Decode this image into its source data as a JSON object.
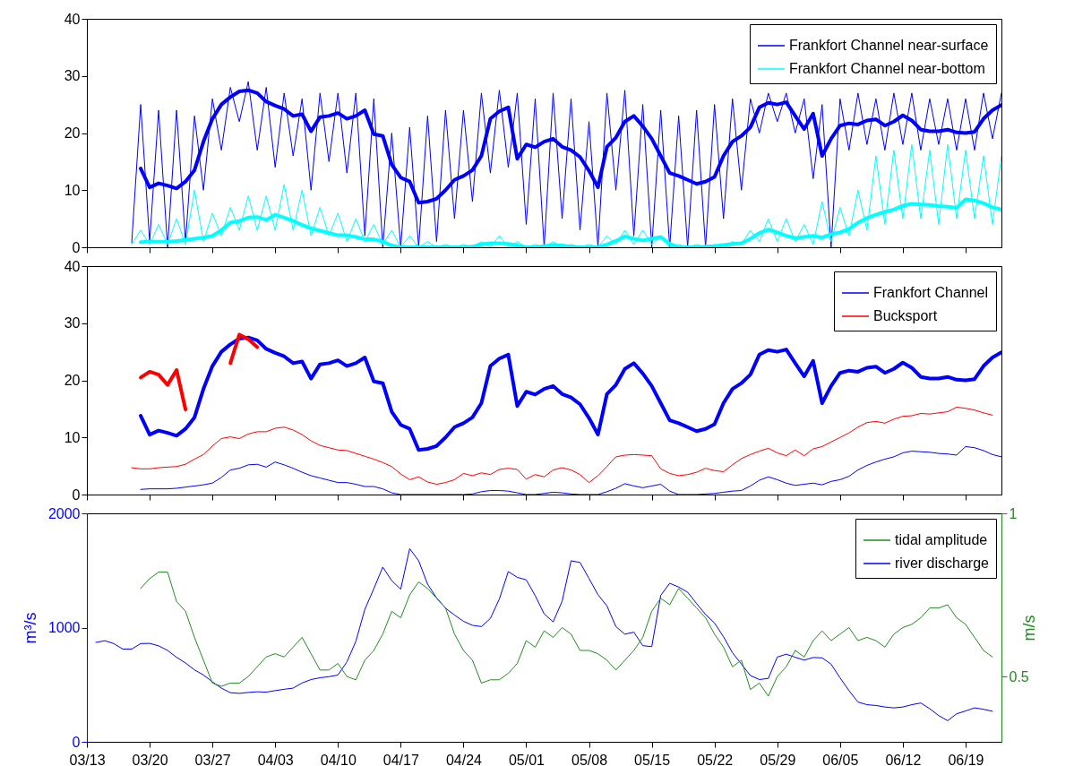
{
  "chart_data": [
    {
      "type": "line",
      "ylim": [
        0,
        40
      ],
      "yticks": [
        0,
        10,
        20,
        30,
        40
      ],
      "xlim": [
        "--03-13",
        "--06-23"
      ],
      "xticks": [
        {
          "value": "--03-13",
          "label": "03/13"
        },
        {
          "value": "--03-20",
          "label": "03/20"
        },
        {
          "value": "--03-27",
          "label": "03/27"
        },
        {
          "value": "--04-03",
          "label": "04/03"
        },
        {
          "value": "--04-10",
          "label": "04/10"
        },
        {
          "value": "--04-17",
          "label": "04/17"
        },
        {
          "value": "--04-24",
          "label": "04/24"
        },
        {
          "value": "--05-01",
          "label": "05/01"
        },
        {
          "value": "--05-08",
          "label": "05/08"
        },
        {
          "value": "--05-15",
          "label": "05/15"
        },
        {
          "value": "--05-22",
          "label": "05/22"
        },
        {
          "value": "--05-29",
          "label": "05/29"
        },
        {
          "value": "--06-05",
          "label": "06/05"
        },
        {
          "value": "--06-12",
          "label": "06/12"
        },
        {
          "value": "--06-19",
          "label": "06/19"
        }
      ],
      "tick_labels": "y",
      "legend": "top right",
      "x": [
        "--03-18",
        "--03-19",
        "--03-20",
        "--03-21",
        "--03-22",
        "--03-23",
        "--03-24",
        "--03-25",
        "--03-26",
        "--03-27",
        "--03-28",
        "--03-29",
        "--03-30",
        "--03-31",
        "--04-01",
        "--04-02",
        "--04-03",
        "--04-04",
        "--04-05",
        "--04-06",
        "--04-07",
        "--04-08",
        "--04-09",
        "--04-10",
        "--04-11",
        "--04-12",
        "--04-13",
        "--04-14",
        "--04-15",
        "--04-16",
        "--04-17",
        "--04-18",
        "--04-19",
        "--04-20",
        "--04-21",
        "--04-22",
        "--04-23",
        "--04-24",
        "--04-25",
        "--04-26",
        "--04-27",
        "--04-28",
        "--04-29",
        "--04-30",
        "--05-01",
        "--05-02",
        "--05-03",
        "--05-04",
        "--05-05",
        "--05-06",
        "--05-07",
        "--05-08",
        "--05-09",
        "--05-10",
        "--05-11",
        "--05-12",
        "--05-13",
        "--05-14",
        "--05-15",
        "--05-16",
        "--05-17",
        "--05-18",
        "--05-19",
        "--05-20",
        "--05-21",
        "--05-22",
        "--05-23",
        "--05-24",
        "--05-25",
        "--05-26",
        "--05-27",
        "--05-28",
        "--05-29",
        "--05-30",
        "--05-31",
        "--06-01",
        "--06-02",
        "--06-03",
        "--06-04",
        "--06-05",
        "--06-06",
        "--06-07",
        "--06-08",
        "--06-09",
        "--06-10",
        "--06-11",
        "--06-12",
        "--06-13",
        "--06-14",
        "--06-15",
        "--06-16",
        "--06-17",
        "--06-18",
        "--06-19",
        "--06-20",
        "--06-21",
        "--06-22",
        "--06-23"
      ],
      "series": [
        {
          "name": "Frankfort Channel near-surface",
          "color": "#0000ff",
          "values": [
            0.8,
            25,
            1,
            24,
            0,
            24,
            1,
            23,
            10,
            26,
            17,
            28,
            22,
            29,
            17,
            28,
            14,
            27,
            16,
            26,
            10,
            27,
            15,
            27,
            13,
            27,
            2,
            26,
            0,
            20,
            0,
            21,
            0,
            23,
            1,
            24,
            5,
            24,
            8,
            27,
            13,
            27.5,
            14,
            27,
            4,
            26,
            0,
            27,
            5,
            26,
            3,
            22,
            0,
            27,
            10,
            27.5,
            2,
            25,
            0,
            24,
            0,
            23,
            0,
            24,
            0,
            25,
            5,
            26,
            10,
            26,
            20,
            27,
            22,
            27,
            20,
            26,
            12,
            25,
            0,
            26,
            17,
            27,
            18,
            26,
            17,
            27,
            18,
            27,
            17,
            26,
            18,
            26,
            17,
            26,
            17,
            27,
            19,
            27
          ]
        },
        {
          "name": "Frankfort Channel near-bottom",
          "color": "#00ffff",
          "values": [
            0.5,
            3,
            0.5,
            4,
            0.5,
            5,
            0.5,
            10,
            1,
            6,
            2,
            7,
            3,
            9,
            3,
            9,
            3,
            11,
            3,
            10,
            2,
            7,
            2,
            6,
            1,
            5,
            1,
            4,
            0.5,
            3,
            0,
            2,
            0,
            1,
            0,
            0.5,
            0,
            0.5,
            0,
            1,
            0,
            2,
            0,
            1,
            0,
            0.5,
            0,
            1,
            0,
            0.5,
            0,
            0.5,
            0,
            2,
            0.5,
            3,
            0.5,
            3,
            0.5,
            2,
            0,
            0.5,
            0,
            0.5,
            0,
            0.5,
            0,
            1,
            0.5,
            3,
            1,
            5,
            1,
            5,
            1,
            4,
            0.5,
            8,
            1,
            7,
            2,
            10,
            3,
            16,
            4,
            17,
            5,
            18,
            5,
            17,
            4,
            18,
            5,
            17,
            5,
            16,
            4,
            16
          ]
        },
        {
          "color": "#0000ff",
          "values": [
            null,
            13.8,
            10.5,
            11.2,
            10.8,
            10.3,
            11.5,
            13.5,
            18.5,
            22.5,
            25,
            26.3,
            27.3,
            27.5,
            27,
            25.5,
            24.8,
            24.2,
            23,
            23.3,
            20.3,
            22.8,
            23,
            23.5,
            22.5,
            23,
            24,
            19.8,
            19.5,
            14.5,
            12.2,
            11.5,
            7.8,
            8,
            8.5,
            10,
            11.8,
            12.5,
            13.5,
            16,
            22.5,
            23.8,
            24.5,
            15.5,
            18,
            17.5,
            18.5,
            19,
            17.6,
            17,
            15.8,
            13.4,
            10.5,
            17.6,
            19.2,
            22,
            23,
            21.2,
            19,
            16,
            13,
            12.5,
            11.8,
            11.1,
            11.5,
            12.3,
            16,
            18.5,
            19.5,
            21,
            24.5,
            25.3,
            25,
            25.4,
            23,
            20.7,
            23.4,
            16,
            19,
            21.3,
            21.7,
            21.5,
            22.2,
            22.4,
            21.3,
            22,
            23.1,
            22.2,
            20.6,
            20.3,
            20.3,
            20.6,
            20.1,
            20,
            20.2,
            22.5,
            24,
            24.9
          ]
        },
        {
          "color": "#00ffff",
          "values": [
            null,
            0.9,
            1,
            1,
            1,
            1.1,
            1.3,
            1.5,
            1.7,
            2,
            3,
            4.3,
            4.6,
            5.2,
            5.3,
            4.8,
            5.7,
            5.2,
            4.6,
            3.9,
            3.3,
            2.9,
            2.5,
            2.1,
            2.1,
            1.8,
            1.4,
            1.4,
            1,
            0.3,
            0,
            0,
            0,
            0,
            0,
            0,
            0,
            0,
            0.1,
            0.5,
            0.7,
            0.7,
            0.6,
            0.3,
            0,
            0,
            0.2,
            0.4,
            0.3,
            0.1,
            0,
            0,
            0,
            0.5,
            1.1,
            1.9,
            1.5,
            1.2,
            1.5,
            1.8,
            0.6,
            0,
            0,
            0,
            0.1,
            0.2,
            0.4,
            0.6,
            0.7,
            1.5,
            2.5,
            3.1,
            2.6,
            2,
            1.6,
            1.8,
            2,
            1.7,
            2.3,
            2.6,
            3.2,
            4.3,
            5.1,
            5.7,
            6.2,
            6.6,
            7.3,
            7.6,
            7.5,
            7.4,
            7.2,
            7.1,
            6.9,
            8.4,
            8.2,
            7.7,
            7,
            6.6
          ]
        }
      ]
    },
    {
      "type": "line",
      "ylim": [
        0,
        40
      ],
      "yticks": [
        0,
        10,
        20,
        30,
        40
      ],
      "xlim": [
        "--03-13",
        "--06-23"
      ],
      "xticks": [
        {
          "value": "--03-13",
          "label": "03/13"
        },
        {
          "value": "--03-20",
          "label": "03/20"
        },
        {
          "value": "--03-27",
          "label": "03/27"
        },
        {
          "value": "--04-03",
          "label": "04/03"
        },
        {
          "value": "--04-10",
          "label": "04/10"
        },
        {
          "value": "--04-17",
          "label": "04/17"
        },
        {
          "value": "--04-24",
          "label": "04/24"
        },
        {
          "value": "--05-01",
          "label": "05/01"
        },
        {
          "value": "--05-08",
          "label": "05/08"
        },
        {
          "value": "--05-15",
          "label": "05/15"
        },
        {
          "value": "--05-22",
          "label": "05/22"
        },
        {
          "value": "--05-29",
          "label": "05/29"
        },
        {
          "value": "--06-05",
          "label": "06/05"
        },
        {
          "value": "--06-12",
          "label": "06/12"
        },
        {
          "value": "--06-19",
          "label": "06/19"
        }
      ],
      "tick_labels": "y",
      "legend": "top right",
      "x": [
        "--03-18",
        "--03-19",
        "--03-20",
        "--03-21",
        "--03-22",
        "--03-23",
        "--03-24",
        "--03-25",
        "--03-26",
        "--03-27",
        "--03-28",
        "--03-29",
        "--03-30",
        "--03-31",
        "--04-01",
        "--04-02",
        "--04-03",
        "--04-04",
        "--04-05",
        "--04-06",
        "--04-07",
        "--04-08",
        "--04-09",
        "--04-10",
        "--04-11",
        "--04-12",
        "--04-13",
        "--04-14",
        "--04-15",
        "--04-16",
        "--04-17",
        "--04-18",
        "--04-19",
        "--04-20",
        "--04-21",
        "--04-22",
        "--04-23",
        "--04-24",
        "--04-25",
        "--04-26",
        "--04-27",
        "--04-28",
        "--04-29",
        "--04-30",
        "--05-01",
        "--05-02",
        "--05-03",
        "--05-04",
        "--05-05",
        "--05-06",
        "--05-07",
        "--05-08",
        "--05-09",
        "--05-10",
        "--05-11",
        "--05-12",
        "--05-13",
        "--05-14",
        "--05-15",
        "--05-16",
        "--05-17",
        "--05-18",
        "--05-19",
        "--05-20",
        "--05-21",
        "--05-22",
        "--05-23",
        "--05-24",
        "--05-25",
        "--05-26",
        "--05-27",
        "--05-28",
        "--05-29",
        "--05-30",
        "--05-31",
        "--06-01",
        "--06-02",
        "--06-03",
        "--06-04",
        "--06-05",
        "--06-06",
        "--06-07",
        "--06-08",
        "--06-09",
        "--06-10",
        "--06-11",
        "--06-12",
        "--06-13",
        "--06-14",
        "--06-15",
        "--06-16",
        "--06-17",
        "--06-18",
        "--06-19",
        "--06-20",
        "--06-21",
        "--06-22",
        "--06-23"
      ],
      "series": [
        {
          "name": "Frankfort Channel",
          "color": "#0000ff",
          "values": [
            null,
            0.9,
            1,
            1,
            1,
            1.1,
            1.3,
            1.5,
            1.7,
            2,
            3,
            4.3,
            4.6,
            5.2,
            5.3,
            4.8,
            5.7,
            5.2,
            4.6,
            3.9,
            3.3,
            2.9,
            2.5,
            2.1,
            2.1,
            1.8,
            1.4,
            1.4,
            1,
            0.3,
            0,
            0,
            0,
            0,
            0,
            0,
            0,
            0,
            0.1,
            0.5,
            0.7,
            0.7,
            0.6,
            0.3,
            0,
            0,
            0.2,
            0.4,
            0.3,
            0.1,
            0,
            0,
            0,
            0.5,
            1.1,
            1.9,
            1.5,
            1.2,
            1.5,
            1.8,
            0.6,
            0,
            0,
            0,
            0.1,
            0.2,
            0.4,
            0.6,
            0.7,
            1.5,
            2.5,
            3.1,
            2.6,
            2,
            1.6,
            1.8,
            2,
            1.7,
            2.3,
            2.6,
            3.2,
            4.3,
            5.1,
            5.7,
            6.2,
            6.6,
            7.3,
            7.6,
            7.5,
            7.4,
            7.2,
            7.1,
            6.9,
            8.4,
            8.2,
            7.7,
            7,
            6.6
          ]
        },
        {
          "name": "Bucksport",
          "color": "#ff0000",
          "values": [
            4.7,
            4.5,
            4.5,
            4.7,
            4.8,
            4.9,
            5.3,
            6.2,
            7,
            8.5,
            9.8,
            10.1,
            9.8,
            10.6,
            11,
            11,
            11.6,
            11.8,
            11.3,
            10.5,
            9.4,
            8.6,
            8.2,
            7.8,
            7.7,
            7.2,
            6.7,
            6.2,
            5.6,
            4.9,
            3.6,
            2.6,
            3.1,
            2.2,
            1.8,
            2.1,
            2.6,
            3.7,
            3.3,
            3.8,
            3.5,
            4.4,
            4.6,
            4.4,
            2.7,
            3.5,
            3.1,
            4.3,
            4.7,
            4.3,
            3.5,
            2.1,
            3.3,
            4.9,
            6.6,
            6.9,
            7,
            6.9,
            6.8,
            4.5,
            3.7,
            3.3,
            3.5,
            3.9,
            4.6,
            4.2,
            4,
            5.2,
            6.3,
            7,
            7.6,
            8.1,
            7.3,
            6.8,
            7.8,
            6.8,
            8,
            8.4,
            9.2,
            10,
            10.8,
            11.8,
            12.6,
            12.8,
            12.5,
            13.2,
            13.7,
            13.8,
            14.2,
            14.1,
            14.3,
            14.5,
            15.3,
            15.1,
            14.8,
            14.3,
            13.9,
            null
          ]
        },
        {
          "color": "#0000ff",
          "values": [
            null,
            13.8,
            10.5,
            11.2,
            10.8,
            10.3,
            11.5,
            13.5,
            18.5,
            22.5,
            25,
            26.3,
            27.3,
            27.5,
            27,
            25.5,
            24.8,
            24.2,
            23,
            23.3,
            20.3,
            22.8,
            23,
            23.5,
            22.5,
            23,
            24,
            19.8,
            19.5,
            14.5,
            12.2,
            11.5,
            7.8,
            8,
            8.5,
            10,
            11.8,
            12.5,
            13.5,
            16,
            22.5,
            23.8,
            24.5,
            15.5,
            18,
            17.5,
            18.5,
            19,
            17.6,
            17,
            15.8,
            13.4,
            10.5,
            17.6,
            19.2,
            22,
            23,
            21.2,
            19,
            16,
            13,
            12.5,
            11.8,
            11.1,
            11.5,
            12.3,
            16,
            18.5,
            19.5,
            21,
            24.5,
            25.3,
            25,
            25.4,
            23,
            20.7,
            23.4,
            16,
            19,
            21.3,
            21.7,
            21.5,
            22.2,
            22.4,
            21.3,
            22,
            23.1,
            22.2,
            20.6,
            20.3,
            20.3,
            20.6,
            20.1,
            20,
            20.2,
            22.5,
            24,
            24.9
          ]
        },
        {
          "color": "#ff0000",
          "x": [
            "--03-19",
            "--03-20",
            "--03-21",
            "--03-22",
            "--03-23",
            "--03-24"
          ],
          "values": [
            20.5,
            21.5,
            21,
            19.2,
            21.8,
            14.9
          ]
        },
        {
          "color": "#ff0000",
          "x": [
            "--03-29",
            "--03-30",
            "--03-31",
            "--04-01"
          ],
          "values": [
            23,
            28,
            27.2,
            25.8
          ]
        }
      ]
    },
    {
      "type": "line",
      "ylim": [
        0,
        2000
      ],
      "yticks": [
        0,
        1000,
        2000
      ],
      "y2lim": [
        0.3,
        1
      ],
      "y2ticks": [
        0.5,
        1
      ],
      "ylabel": "m³/s",
      "y2label": "m/s",
      "xlim": [
        "--03-13",
        "--06-23"
      ],
      "xticks": [
        {
          "value": "--03-13",
          "label": "03/13"
        },
        {
          "value": "--03-20",
          "label": "03/20"
        },
        {
          "value": "--03-27",
          "label": "03/27"
        },
        {
          "value": "--04-03",
          "label": "04/03"
        },
        {
          "value": "--04-10",
          "label": "04/10"
        },
        {
          "value": "--04-17",
          "label": "04/17"
        },
        {
          "value": "--04-24",
          "label": "04/24"
        },
        {
          "value": "--05-01",
          "label": "05/01"
        },
        {
          "value": "--05-08",
          "label": "05/08"
        },
        {
          "value": "--05-15",
          "label": "05/15"
        },
        {
          "value": "--05-22",
          "label": "05/22"
        },
        {
          "value": "--05-29",
          "label": "05/29"
        },
        {
          "value": "--06-05",
          "label": "06/05"
        },
        {
          "value": "--06-12",
          "label": "06/12"
        },
        {
          "value": "--06-19",
          "label": "06/19"
        }
      ],
      "legend": "top right",
      "x": [
        "--03-14",
        "--03-15",
        "--03-16",
        "--03-17",
        "--03-18",
        "--03-19",
        "--03-20",
        "--03-21",
        "--03-22",
        "--03-23",
        "--03-24",
        "--03-25",
        "--03-26",
        "--03-27",
        "--03-28",
        "--03-29",
        "--03-30",
        "--03-31",
        "--04-01",
        "--04-02",
        "--04-03",
        "--04-04",
        "--04-05",
        "--04-06",
        "--04-07",
        "--04-08",
        "--04-09",
        "--04-10",
        "--04-11",
        "--04-12",
        "--04-13",
        "--04-14",
        "--04-15",
        "--04-16",
        "--04-17",
        "--04-18",
        "--04-19",
        "--04-20",
        "--04-21",
        "--04-22",
        "--04-23",
        "--04-24",
        "--04-25",
        "--04-26",
        "--04-27",
        "--04-28",
        "--04-29",
        "--04-30",
        "--05-01",
        "--05-02",
        "--05-03",
        "--05-04",
        "--05-05",
        "--05-06",
        "--05-07",
        "--05-08",
        "--05-09",
        "--05-10",
        "--05-11",
        "--05-12",
        "--05-13",
        "--05-14",
        "--05-15",
        "--05-16",
        "--05-17",
        "--05-18",
        "--05-19",
        "--05-20",
        "--05-21",
        "--05-22",
        "--05-23",
        "--05-24",
        "--05-25",
        "--05-26",
        "--05-27",
        "--05-28",
        "--05-29",
        "--05-30",
        "--05-31",
        "--06-01",
        "--06-02",
        "--06-03",
        "--06-04",
        "--06-05",
        "--06-06",
        "--06-07",
        "--06-08",
        "--06-09",
        "--06-10",
        "--06-11",
        "--06-12",
        "--06-13",
        "--06-14",
        "--06-15",
        "--06-16",
        "--06-17",
        "--06-18",
        "--06-19",
        "--06-20",
        "--06-21",
        "--06-22"
      ],
      "series": [
        {
          "name": "tidal amplitude",
          "color": "#228b22",
          "axis": "y2",
          "values": [
            null,
            null,
            null,
            null,
            null,
            0.77,
            0.8,
            0.82,
            0.82,
            0.73,
            0.7,
            0.62,
            0.55,
            0.48,
            0.47,
            0.48,
            0.48,
            0.5,
            0.53,
            0.56,
            0.57,
            0.56,
            0.59,
            0.62,
            0.57,
            0.52,
            0.52,
            0.54,
            0.5,
            0.49,
            0.55,
            0.58,
            0.63,
            0.7,
            0.68,
            0.75,
            0.79,
            0.77,
            0.74,
            0.71,
            0.63,
            0.58,
            0.55,
            0.48,
            0.49,
            0.49,
            0.51,
            0.54,
            0.61,
            0.59,
            0.64,
            0.62,
            0.65,
            0.63,
            0.58,
            0.58,
            0.57,
            0.55,
            0.52,
            0.55,
            0.58,
            0.62,
            0.7,
            0.74,
            0.72,
            0.77,
            0.74,
            0.71,
            0.68,
            0.63,
            0.59,
            0.53,
            0.55,
            0.46,
            0.48,
            0.44,
            0.5,
            0.53,
            0.58,
            0.56,
            0.61,
            0.64,
            0.61,
            0.63,
            0.65,
            0.61,
            0.62,
            0.61,
            0.59,
            0.63,
            0.65,
            0.66,
            0.68,
            0.71,
            0.71,
            0.72,
            0.68,
            0.66,
            0.62,
            0.58,
            0.56
          ]
        },
        {
          "name": "river discharge",
          "color": "#0000ff",
          "values": [
            870,
            885,
            860,
            812,
            812,
            860,
            862,
            840,
            800,
            740,
            690,
            630,
            585,
            525,
            470,
            430,
            424,
            432,
            438,
            435,
            448,
            460,
            470,
            515,
            545,
            561,
            570,
            585,
            700,
            880,
            1160,
            1340,
            1530,
            1410,
            1336,
            1691,
            1585,
            1380,
            1260,
            1170,
            1110,
            1055,
            1020,
            1009,
            1080,
            1250,
            1490,
            1440,
            1418,
            1280,
            1120,
            1050,
            1230,
            1585,
            1570,
            1430,
            1288,
            1190,
            1009,
            942,
            960,
            842,
            833,
            1282,
            1388,
            1355,
            1310,
            1210,
            1115,
            1040,
            920,
            780,
            680,
            580,
            545,
            555,
            742,
            767,
            740,
            715,
            738,
            735,
            680,
            560,
            448,
            348,
            325,
            318,
            305,
            297,
            305,
            325,
            340,
            290,
            230,
            185,
            245,
            270,
            297,
            285,
            267
          ]
        }
      ]
    }
  ]
}
